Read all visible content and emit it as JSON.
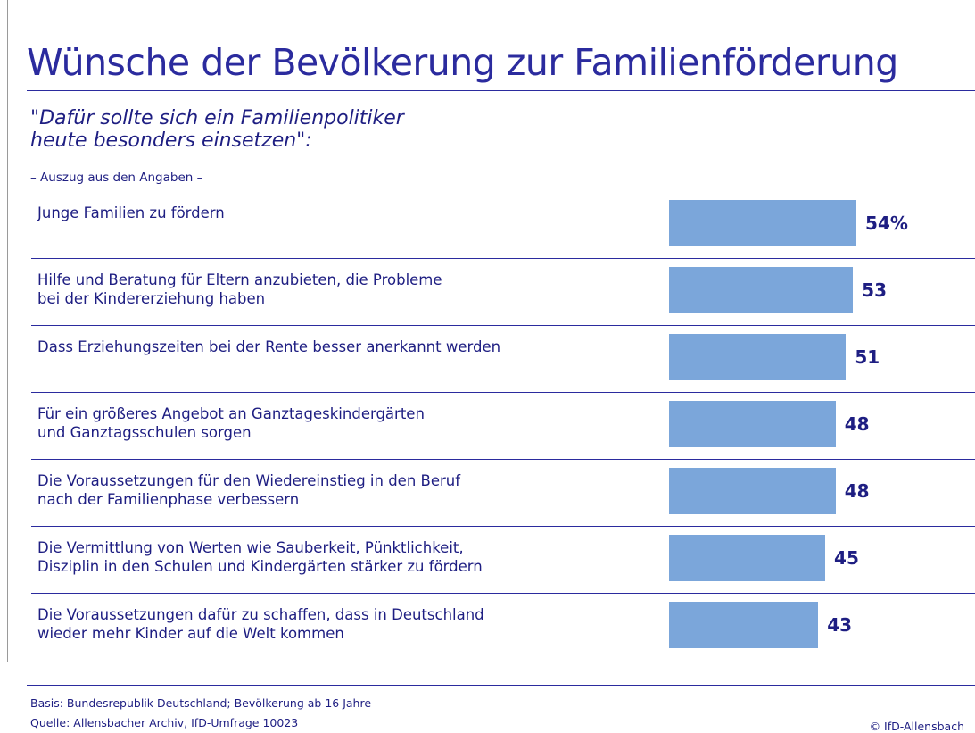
{
  "chart_data": {
    "type": "bar",
    "orientation": "horizontal",
    "title": "Wünsche der Bevölkerung zur Familienförderung",
    "subtitle": "\"Dafür sollte sich ein Familienpolitiker\nheute besonders einsetzen\":",
    "note": "– Auszug aus den Angaben –",
    "categories": [
      "Junge Familien zu fördern",
      "Hilfe und Beratung für Eltern anzubieten, die Probleme\nbei der Kindererziehung haben",
      "Dass Erziehungszeiten bei der Rente besser anerkannt werden",
      "Für ein größeres Angebot an Ganztageskindergärten\nund Ganztagsschulen sorgen",
      "Die Voraussetzungen für den Wiedereinstieg in den Beruf\nnach der Familienphase verbessern",
      "Die Vermittlung von Werten wie Sauberkeit, Pünktlichkeit,\nDisziplin in den Schulen und Kindergärten stärker zu fördern",
      "Die Voraussetzungen dafür zu schaffen, dass in Deutschland\nwieder mehr Kinder auf die Welt kommen"
    ],
    "values": [
      54,
      53,
      51,
      48,
      48,
      45,
      43
    ],
    "value_labels": [
      "54%",
      "53",
      "51",
      "48",
      "48",
      "45",
      "43"
    ],
    "color": "#7ba6da",
    "xlim": [
      0,
      100
    ],
    "footer": [
      "Basis: Bundesrepublik Deutschland; Bevölkerung ab 16 Jahre",
      "Quelle: Allensbacher Archiv, IfD-Umfrage 10023"
    ],
    "credit": "© IfD-Allensbach"
  }
}
